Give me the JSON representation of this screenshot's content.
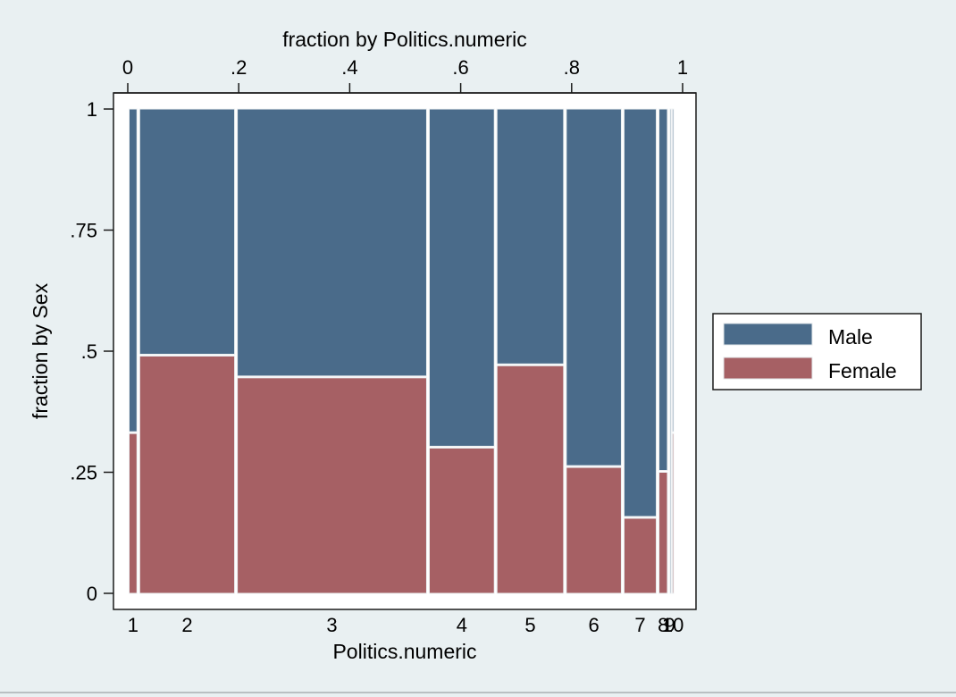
{
  "chart_data": {
    "type": "bar",
    "subtype": "mosaic",
    "top_axis_title": "fraction by Politics.numeric",
    "top_ticks": [
      {
        "value": 0,
        "label": "0"
      },
      {
        "value": 0.2,
        "label": ".2"
      },
      {
        "value": 0.4,
        "label": ".4"
      },
      {
        "value": 0.6,
        "label": ".6"
      },
      {
        "value": 0.8,
        "label": ".8"
      },
      {
        "value": 1,
        "label": "1"
      }
    ],
    "ylabel": "fraction by Sex",
    "y_ticks": [
      {
        "value": 0,
        "label": "0"
      },
      {
        "value": 0.25,
        "label": ".25"
      },
      {
        "value": 0.5,
        "label": ".5"
      },
      {
        "value": 0.75,
        "label": ".75"
      },
      {
        "value": 1,
        "label": "1"
      }
    ],
    "xlabel": "Politics.numeric",
    "ylim": [
      0,
      1
    ],
    "xlim": [
      0,
      1
    ],
    "grid": false,
    "legend_position": "right",
    "categories": [
      "1",
      "2",
      "3",
      "4",
      "5",
      "6",
      "7",
      "8",
      "9",
      "10"
    ],
    "column_widths": [
      0.019,
      0.176,
      0.346,
      0.122,
      0.125,
      0.104,
      0.063,
      0.02,
      0.004,
      0.007
    ],
    "series": [
      {
        "name": "Male",
        "color": "#4a6b8a",
        "values": [
          0.67,
          0.51,
          0.555,
          0.7,
          0.53,
          0.74,
          0.845,
          0.75,
          1.0,
          0.67
        ]
      },
      {
        "name": "Female",
        "color": "#a66064",
        "values": [
          0.33,
          0.49,
          0.445,
          0.3,
          0.47,
          0.26,
          0.155,
          0.25,
          0.0,
          0.33
        ]
      }
    ]
  }
}
